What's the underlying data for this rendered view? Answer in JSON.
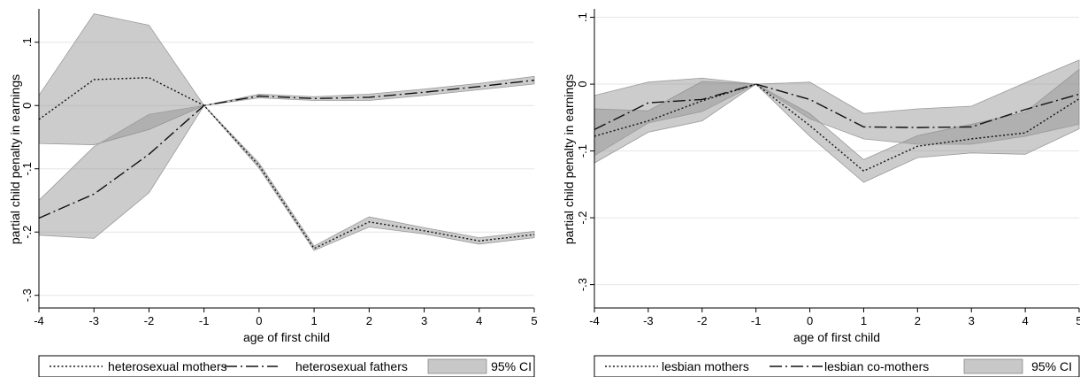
{
  "chart_data": [
    {
      "type": "line",
      "title": "",
      "xlabel": "age of first child",
      "ylabel": "partial child penalty in earnings",
      "xlim": [
        -4,
        5
      ],
      "ylim": [
        -0.32,
        0.15
      ],
      "x": [
        -4,
        -3,
        -2,
        -1,
        0,
        1,
        2,
        3,
        4,
        5
      ],
      "xticks": [
        "-4",
        "-3",
        "-2",
        "-1",
        "0",
        "1",
        "2",
        "3",
        "4",
        "5"
      ],
      "yticks": [
        {
          "value": 0.1,
          "label": ".1"
        },
        {
          "value": 0,
          "label": "0"
        },
        {
          "value": -0.1,
          "label": "-.1"
        },
        {
          "value": -0.2,
          "label": "-.2"
        },
        {
          "value": -0.3,
          "label": "-.3"
        }
      ],
      "grid": true,
      "legend_position": "bottom",
      "series": [
        {
          "name": "heterosexual mothers",
          "style": "dotted",
          "values": [
            -0.022,
            0.041,
            0.044,
            0,
            -0.095,
            -0.226,
            -0.184,
            -0.198,
            -0.214,
            -0.204
          ],
          "ci_lower": [
            -0.06,
            -0.062,
            -0.038,
            0,
            -0.099,
            -0.229,
            -0.192,
            -0.203,
            -0.219,
            -0.209
          ],
          "ci_upper": [
            0.016,
            0.145,
            0.127,
            0,
            -0.091,
            -0.222,
            -0.176,
            -0.193,
            -0.209,
            -0.199
          ]
        },
        {
          "name": "heterosexual fathers",
          "style": "dashdot",
          "values": [
            -0.178,
            -0.14,
            -0.077,
            0,
            0.015,
            0.011,
            0.013,
            0.021,
            0.03,
            0.04
          ],
          "ci_lower": [
            -0.205,
            -0.21,
            -0.138,
            0,
            0.012,
            0.008,
            0.008,
            0.016,
            0.025,
            0.034
          ],
          "ci_upper": [
            -0.15,
            -0.065,
            -0.014,
            0,
            0.018,
            0.014,
            0.018,
            0.026,
            0.035,
            0.046
          ]
        }
      ],
      "legend": [
        {
          "label": "heterosexual mothers",
          "style": "dotted"
        },
        {
          "label": "heterosexual fathers",
          "style": "dashdot"
        },
        {
          "label": "95% CI",
          "style": "fill"
        }
      ]
    },
    {
      "type": "line",
      "title": "",
      "xlabel": "age of first child",
      "ylabel": "partial child penalty in earnings",
      "xlim": [
        -4,
        5
      ],
      "ylim": [
        -0.335,
        0.11
      ],
      "x": [
        -4,
        -3,
        -2,
        -1,
        0,
        1,
        2,
        3,
        4,
        5
      ],
      "xticks": [
        "-4",
        "-3",
        "-2",
        "-1",
        "0",
        "1",
        "2",
        "3",
        "4",
        "5"
      ],
      "yticks": [
        {
          "value": 0.1,
          "label": ".1"
        },
        {
          "value": 0,
          "label": "0"
        },
        {
          "value": -0.1,
          "label": "-.1"
        },
        {
          "value": -0.2,
          "label": "-.2"
        },
        {
          "value": -0.3,
          "label": "-.3"
        }
      ],
      "grid": true,
      "legend_position": "bottom",
      "series": [
        {
          "name": "lesbian mothers",
          "style": "dotted",
          "values": [
            -0.078,
            -0.055,
            -0.025,
            0,
            -0.062,
            -0.13,
            -0.093,
            -0.082,
            -0.073,
            -0.022
          ],
          "ci_lower": [
            -0.118,
            -0.072,
            -0.055,
            0,
            -0.078,
            -0.147,
            -0.11,
            -0.103,
            -0.105,
            -0.067
          ],
          "ci_upper": [
            -0.037,
            -0.04,
            0.004,
            0,
            -0.044,
            -0.113,
            -0.077,
            -0.06,
            -0.042,
            0.022
          ]
        },
        {
          "name": "lesbian co-mothers",
          "style": "dashdot",
          "values": [
            -0.068,
            -0.028,
            -0.023,
            0,
            -0.023,
            -0.064,
            -0.065,
            -0.064,
            -0.038,
            -0.015
          ],
          "ci_lower": [
            -0.107,
            -0.058,
            -0.041,
            0,
            -0.052,
            -0.082,
            -0.09,
            -0.09,
            -0.078,
            -0.06
          ],
          "ci_upper": [
            -0.017,
            0.003,
            0.009,
            0,
            0.003,
            -0.044,
            -0.037,
            -0.033,
            0.002,
            0.036
          ]
        }
      ],
      "legend": [
        {
          "label": "lesbian mothers",
          "style": "dotted"
        },
        {
          "label": "lesbian co-mothers",
          "style": "dashdot"
        },
        {
          "label": "95% CI",
          "style": "fill"
        }
      ]
    }
  ]
}
